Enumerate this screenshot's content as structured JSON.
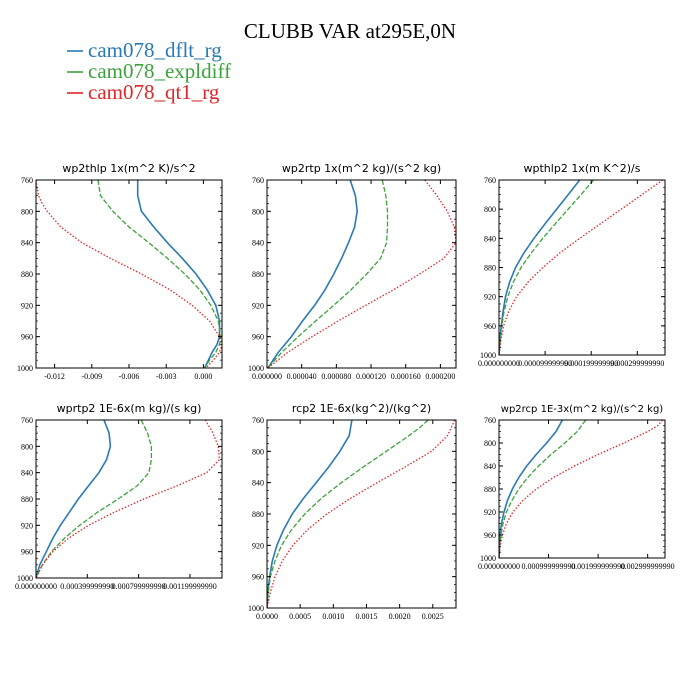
{
  "figure": {
    "title": "CLUBB VAR at295E,0N"
  },
  "legend": [
    {
      "name": "cam078_dflt_rg",
      "color": "#2a7ab6"
    },
    {
      "name": "cam078_expldiff",
      "color": "#3ca23c"
    },
    {
      "name": "cam078_qt1_rg",
      "color": "#e0262a"
    }
  ],
  "chart_data": [
    {
      "type": "line",
      "title": "wp2thlp  1x(m^2 K)/s^2",
      "xlim": [
        -0.0135,
        0.0015
      ],
      "ylim": [
        760,
        1000
      ],
      "yticks": [
        760,
        800,
        840,
        880,
        920,
        960,
        1000
      ],
      "xticks": [
        -0.012,
        -0.009,
        -0.006,
        -0.003,
        0.0
      ],
      "xtick_labels": [
        "-0.012",
        "-0.009",
        "-0.006",
        "-0.003",
        "0.000"
      ],
      "series": [
        {
          "name": "cam078_dflt_rg",
          "style": "solid",
          "y": [
            760,
            780,
            800,
            820,
            840,
            860,
            880,
            900,
            920,
            940,
            960,
            970,
            980,
            990,
            1000
          ],
          "x": [
            -0.0053,
            -0.0053,
            -0.005,
            -0.004,
            -0.0029,
            -0.0017,
            -0.0006,
            0.0003,
            0.001,
            0.0013,
            0.0013,
            0.0011,
            0.0007,
            0.0004,
            0.0001
          ]
        },
        {
          "name": "cam078_expldiff",
          "style": "dash",
          "y": [
            760,
            780,
            800,
            820,
            840,
            860,
            880,
            900,
            920,
            940,
            960,
            970,
            980,
            990,
            1000
          ],
          "x": [
            -0.0085,
            -0.0083,
            -0.0073,
            -0.006,
            -0.0044,
            -0.0029,
            -0.0015,
            -0.0003,
            0.0006,
            0.0012,
            0.0014,
            0.0013,
            0.001,
            0.0005,
            0.0001
          ]
        },
        {
          "name": "cam078_qt1_rg",
          "style": "dot",
          "y": [
            760,
            770,
            780,
            790,
            800,
            820,
            840,
            860,
            880,
            900,
            920,
            940,
            960,
            970,
            980,
            990,
            1000
          ],
          "x": [
            -0.0135,
            -0.0134,
            -0.0133,
            -0.013,
            -0.0126,
            -0.0115,
            -0.0098,
            -0.0075,
            -0.005,
            -0.0027,
            -0.0009,
            0.0005,
            0.0013,
            0.0015,
            0.0013,
            0.0008,
            0.0002
          ]
        }
      ]
    },
    {
      "type": "line",
      "title": "wp2rtp  1x(m^2 kg)/(s^2 kg)",
      "xlim": [
        0,
        0.000218
      ],
      "ylim": [
        760,
        1000
      ],
      "yticks": [
        760,
        800,
        840,
        880,
        920,
        960,
        1000
      ],
      "xticks": [
        0,
        4e-05,
        8e-05,
        0.00012,
        0.00016,
        0.0002
      ],
      "xtick_labels": [
        "0.000000",
        "0.000040",
        "0.000080",
        "0.000120",
        "0.000160",
        "0.000200"
      ],
      "series": [
        {
          "name": "cam078_dflt_rg",
          "style": "solid",
          "y": [
            760,
            780,
            800,
            820,
            840,
            860,
            880,
            900,
            920,
            940,
            960,
            980,
            1000
          ],
          "x": [
            9.6e-05,
            0.000102,
            0.000104,
            0.000101,
            9.4e-05,
            8.6e-05,
            7.7e-05,
            6.7e-05,
            5.5e-05,
            4.1e-05,
            2.8e-05,
            1.3e-05,
            1e-06
          ]
        },
        {
          "name": "cam078_expldiff",
          "style": "dash",
          "y": [
            760,
            780,
            800,
            820,
            840,
            860,
            880,
            900,
            920,
            940,
            960,
            980,
            1000
          ],
          "x": [
            0.000133,
            0.000137,
            0.000139,
            0.000139,
            0.000138,
            0.000131,
            0.000115,
            9.7e-05,
            7.7e-05,
            5.6e-05,
            3.6e-05,
            1.7e-05,
            1e-06
          ]
        },
        {
          "name": "cam078_qt1_rg",
          "style": "dot",
          "y": [
            760,
            780,
            800,
            820,
            840,
            860,
            880,
            900,
            920,
            940,
            960,
            980,
            1000
          ],
          "x": [
            0.000182,
            0.000196,
            0.000208,
            0.000216,
            0.000218,
            0.000204,
            0.000176,
            0.000146,
            0.000114,
            8.2e-05,
            5.2e-05,
            2.4e-05,
            1e-06
          ]
        }
      ]
    },
    {
      "type": "line",
      "title": "wpthlp2  1x(m K^2)/s",
      "xlim": [
        0,
        0.00036
      ],
      "ylim": [
        760,
        1000
      ],
      "yticks": [
        760,
        800,
        840,
        880,
        920,
        960,
        1000
      ],
      "xticks": [
        0,
        9.999999e-05,
        0.00019999999,
        0.00029999999
      ],
      "xtick_labels": [
        "0.000000000",
        "0.000099999990",
        "0.000199999990",
        "0.000299999990"
      ],
      "series": [
        {
          "name": "cam078_dflt_rg",
          "style": "solid",
          "y": [
            760,
            780,
            800,
            820,
            840,
            860,
            880,
            900,
            920,
            940,
            960,
            980,
            1000
          ],
          "x": [
            0.000175,
            0.00015,
            0.000125,
            0.0001,
            7.6e-05,
            5.4e-05,
            3.6e-05,
            2.3e-05,
            1.4e-05,
            9e-06,
            5e-06,
            2e-06,
            0.0
          ]
        },
        {
          "name": "cam078_expldiff",
          "style": "dash",
          "y": [
            760,
            780,
            800,
            820,
            840,
            860,
            880,
            900,
            920,
            940,
            960,
            980,
            1000
          ],
          "x": [
            0.000205,
            0.000178,
            0.00015,
            0.000122,
            9.5e-05,
            7e-05,
            4.8e-05,
            3.1e-05,
            1.9e-05,
            1.1e-05,
            6e-06,
            3e-06,
            0.0
          ]
        },
        {
          "name": "cam078_qt1_rg",
          "style": "dot",
          "y": [
            760,
            780,
            800,
            820,
            840,
            860,
            880,
            900,
            920,
            940,
            960,
            980,
            1000
          ],
          "x": [
            0.000355,
            0.00031,
            0.000265,
            0.00022,
            0.000175,
            0.000132,
            9.5e-05,
            6.3e-05,
            3.8e-05,
            2.1e-05,
            1e-05,
            4e-06,
            0.0
          ]
        }
      ]
    },
    {
      "type": "line",
      "title": "wprtp2  1E-6x(m kg)/(s kg)",
      "xlim": [
        0,
        0.00145
      ],
      "ylim": [
        760,
        1000
      ],
      "yticks": [
        760,
        800,
        840,
        880,
        920,
        960,
        1000
      ],
      "xticks": [
        0,
        0.00039999999,
        0.00079999999,
        0.00119999999
      ],
      "xtick_labels": [
        "0.000000000",
        "0.000399999990",
        "0.000799999990",
        "0.001199999990"
      ],
      "series": [
        {
          "name": "cam078_dflt_rg",
          "style": "solid",
          "y": [
            760,
            780,
            800,
            820,
            840,
            860,
            880,
            900,
            920,
            940,
            960,
            980,
            1000
          ],
          "x": [
            0.00053,
            0.00057,
            0.00058,
            0.00055,
            0.00049,
            0.00041,
            0.00033,
            0.00026,
            0.00019,
            0.00013,
            8e-05,
            3e-05,
            0.0
          ]
        },
        {
          "name": "cam078_expldiff",
          "style": "dash",
          "y": [
            760,
            780,
            800,
            820,
            840,
            860,
            880,
            900,
            920,
            940,
            960,
            980,
            1000
          ],
          "x": [
            0.00082,
            0.00087,
            0.0009,
            0.0009,
            0.00088,
            0.00079,
            0.00064,
            0.00048,
            0.00034,
            0.00022,
            0.00012,
            5e-05,
            0.0
          ]
        },
        {
          "name": "cam078_qt1_rg",
          "style": "dot",
          "y": [
            760,
            780,
            800,
            820,
            840,
            860,
            880,
            900,
            920,
            940,
            960,
            980,
            1000
          ],
          "x": [
            0.00132,
            0.00138,
            0.00142,
            0.00143,
            0.00133,
            0.0011,
            0.00084,
            0.00061,
            0.00041,
            0.00025,
            0.00013,
            5e-05,
            0.0
          ]
        }
      ]
    },
    {
      "type": "line",
      "title": "rcp2  1E-6x(kg^2)/(kg^2)",
      "xlim": [
        0,
        0.00285
      ],
      "ylim": [
        760,
        1000
      ],
      "yticks": [
        760,
        800,
        840,
        880,
        920,
        960,
        1000
      ],
      "xticks": [
        0,
        0.0005,
        0.001,
        0.0015,
        0.002,
        0.0025
      ],
      "xtick_labels": [
        "0.0000",
        "0.0005",
        "0.0010",
        "0.0015",
        "0.0020",
        "0.0025"
      ],
      "series": [
        {
          "name": "cam078_dflt_rg",
          "style": "solid",
          "y": [
            760,
            780,
            800,
            820,
            840,
            860,
            880,
            900,
            920,
            940,
            960,
            980,
            1000
          ],
          "x": [
            0.00128,
            0.00124,
            0.0011,
            0.00093,
            0.00074,
            0.00055,
            0.00038,
            0.00025,
            0.00015,
            8e-05,
            4e-05,
            1e-05,
            0.0
          ]
        },
        {
          "name": "cam078_expldiff",
          "style": "dash",
          "y": [
            760,
            770,
            780,
            800,
            820,
            840,
            860,
            880,
            900,
            920,
            940,
            960,
            980,
            1000
          ],
          "x": [
            0.00243,
            0.0023,
            0.00214,
            0.0018,
            0.00145,
            0.00112,
            0.00082,
            0.00057,
            0.00037,
            0.00022,
            0.00012,
            5e-05,
            2e-05,
            0.0
          ]
        },
        {
          "name": "cam078_qt1_rg",
          "style": "dot",
          "y": [
            760,
            780,
            800,
            820,
            840,
            860,
            880,
            900,
            920,
            940,
            960,
            980,
            1000
          ],
          "x": [
            0.00283,
            0.00272,
            0.00248,
            0.00208,
            0.00166,
            0.00126,
            0.0009,
            0.00061,
            0.00039,
            0.00023,
            0.00012,
            5e-05,
            0.0
          ]
        }
      ]
    },
    {
      "type": "line",
      "title": "wp2rcp  1E-3x(m^2 kg)/(s^2 kg)",
      "xlim": [
        0,
        0.00335
      ],
      "ylim": [
        760,
        1000
      ],
      "yticks": [
        760,
        800,
        840,
        880,
        920,
        960,
        1000
      ],
      "xticks": [
        0,
        0.00099999999,
        0.00199999999,
        0.00299999999
      ],
      "xtick_labels": [
        "0.000000000",
        "0.000999999990",
        "0.001999999990",
        "0.002999999990"
      ],
      "series": [
        {
          "name": "cam078_dflt_rg",
          "style": "solid",
          "y": [
            760,
            780,
            800,
            820,
            840,
            860,
            880,
            900,
            920,
            940,
            960,
            980,
            1000
          ],
          "x": [
            0.00128,
            0.00115,
            0.00096,
            0.00075,
            0.00056,
            0.0004,
            0.00027,
            0.00017,
            0.0001,
            5e-05,
            2e-05,
            1e-05,
            0.0
          ]
        },
        {
          "name": "cam078_expldiff",
          "style": "dash",
          "y": [
            760,
            780,
            800,
            820,
            840,
            860,
            880,
            900,
            920,
            940,
            960,
            980,
            1000
          ],
          "x": [
            0.00175,
            0.00158,
            0.00133,
            0.00105,
            0.0008,
            0.00058,
            0.0004,
            0.00026,
            0.00015,
            8e-05,
            4e-05,
            1e-05,
            0.0
          ]
        },
        {
          "name": "cam078_qt1_rg",
          "style": "dot",
          "y": [
            760,
            770,
            780,
            800,
            820,
            840,
            860,
            880,
            900,
            920,
            940,
            960,
            980,
            1000
          ],
          "x": [
            0.0033,
            0.0032,
            0.003,
            0.00252,
            0.002,
            0.00152,
            0.0011,
            0.00075,
            0.00048,
            0.00028,
            0.00015,
            7e-05,
            2e-05,
            0.0
          ]
        }
      ]
    }
  ]
}
